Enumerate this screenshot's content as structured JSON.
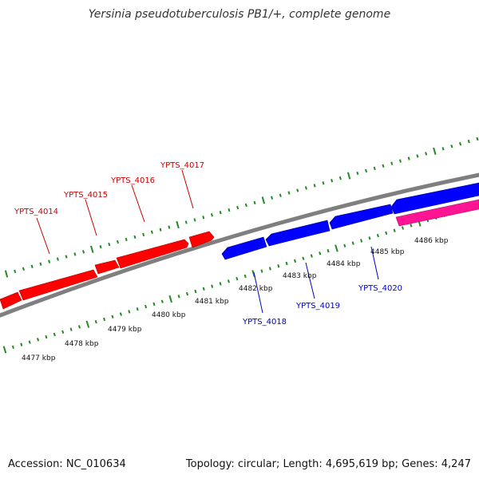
{
  "title": "Yersinia pseudotuberculosis PB1/+, complete genome",
  "accession_text": "Accession: NC_010634",
  "stats_text": "Topology: circular; Length: 4,695,619 bp; Genes: 4,247",
  "colors": {
    "forward": "#ff0000",
    "reverse": "#0000ff",
    "other": "#ff1493",
    "backbone": "#7f7f7f",
    "ticks": "#228b22"
  },
  "ticks": [
    {
      "label": "4477 kbp",
      "kbp": 4477
    },
    {
      "label": "4478 kbp",
      "kbp": 4478
    },
    {
      "label": "4479 kbp",
      "kbp": 4479
    },
    {
      "label": "4480 kbp",
      "kbp": 4480
    },
    {
      "label": "4481 kbp",
      "kbp": 4481
    },
    {
      "label": "4482 kbp",
      "kbp": 4482
    },
    {
      "label": "4483 kbp",
      "kbp": 4483
    },
    {
      "label": "4484 kbp",
      "kbp": 4484
    },
    {
      "label": "4485 kbp",
      "kbp": 4485
    },
    {
      "label": "4486 kbp",
      "kbp": 4486
    }
  ],
  "genes": [
    {
      "label": "YPTS_4014",
      "strand": "+"
    },
    {
      "label": "YPTS_4015",
      "strand": "+"
    },
    {
      "label": "YPTS_4016",
      "strand": "+"
    },
    {
      "label": "YPTS_4017",
      "strand": "+"
    },
    {
      "label": "YPTS_4018",
      "strand": "-"
    },
    {
      "label": "YPTS_4019",
      "strand": "-"
    },
    {
      "label": "YPTS_4020",
      "strand": "-"
    }
  ]
}
